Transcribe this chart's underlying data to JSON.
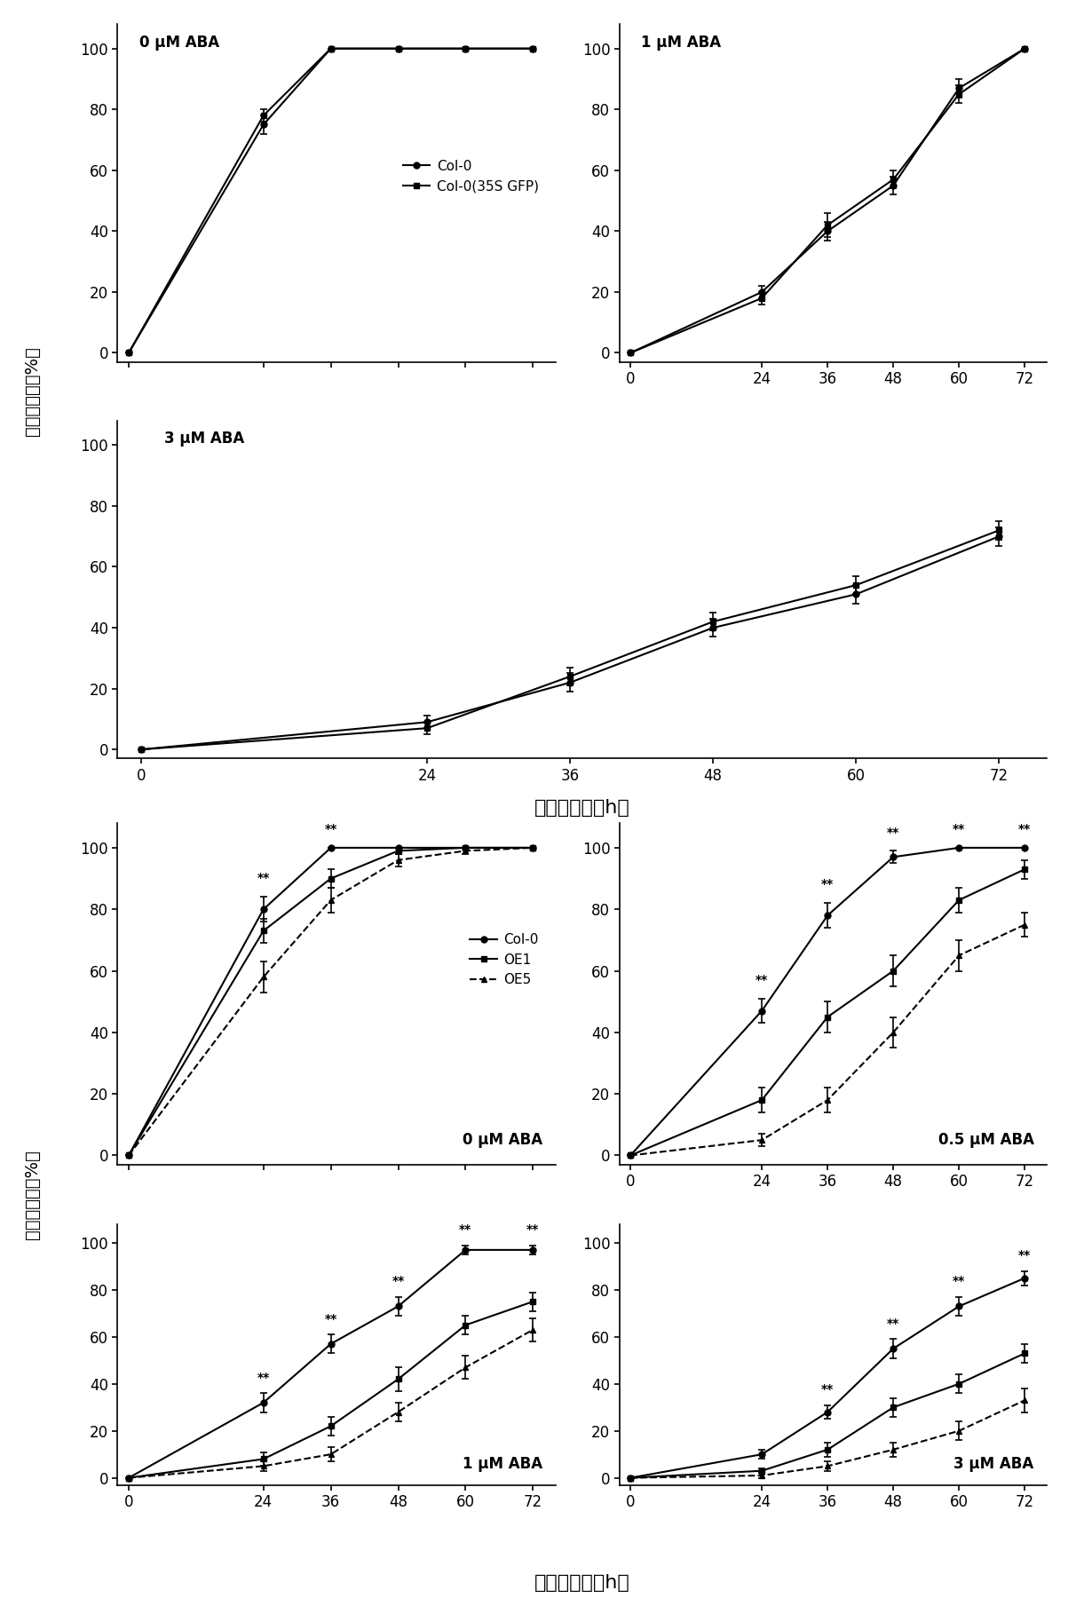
{
  "xvals": [
    0,
    24,
    36,
    48,
    60,
    72
  ],
  "top_panels": {
    "panel_0ABA": {
      "label": "0 μM ABA",
      "Col0": {
        "y": [
          0,
          75,
          100,
          100,
          100,
          100
        ],
        "yerr": [
          0,
          3,
          0,
          0,
          0,
          0
        ]
      },
      "Col0_35S": {
        "y": [
          0,
          78,
          100,
          100,
          100,
          100
        ],
        "yerr": [
          0,
          2,
          0,
          0,
          0,
          0
        ]
      }
    },
    "panel_1ABA": {
      "label": "1 μM ABA",
      "Col0": {
        "y": [
          0,
          20,
          40,
          55,
          87,
          100
        ],
        "yerr": [
          0,
          2,
          3,
          3,
          3,
          0
        ]
      },
      "Col0_35S": {
        "y": [
          0,
          18,
          42,
          57,
          85,
          100
        ],
        "yerr": [
          0,
          2,
          4,
          3,
          3,
          0
        ]
      }
    },
    "panel_3ABA": {
      "label": "3 μM ABA",
      "Col0": {
        "y": [
          0,
          9,
          22,
          40,
          51,
          70
        ],
        "yerr": [
          0,
          2,
          3,
          3,
          3,
          3
        ]
      },
      "Col0_35S": {
        "y": [
          0,
          7,
          24,
          42,
          54,
          72
        ],
        "yerr": [
          0,
          2,
          3,
          3,
          3,
          3
        ]
      }
    }
  },
  "bottom_panels": {
    "panel_0ABA": {
      "label": "0 μM ABA",
      "Col0": {
        "y": [
          0,
          80,
          100,
          100,
          100,
          100
        ],
        "yerr": [
          0,
          4,
          0,
          0,
          0,
          0
        ]
      },
      "OE1": {
        "y": [
          0,
          73,
          90,
          99,
          100,
          100
        ],
        "yerr": [
          0,
          4,
          3,
          1,
          0,
          0
        ]
      },
      "OE5": {
        "y": [
          0,
          58,
          83,
          96,
          99,
          100
        ],
        "yerr": [
          0,
          5,
          4,
          2,
          1,
          0
        ]
      },
      "sig_times": [
        24,
        36
      ],
      "sig_labels": [
        "**",
        "**"
      ]
    },
    "panel_0p5ABA": {
      "label": "0.5 μM ABA",
      "Col0": {
        "y": [
          0,
          47,
          78,
          97,
          100,
          100
        ],
        "yerr": [
          0,
          4,
          4,
          2,
          0,
          0
        ]
      },
      "OE1": {
        "y": [
          0,
          18,
          45,
          60,
          83,
          93
        ],
        "yerr": [
          0,
          4,
          5,
          5,
          4,
          3
        ]
      },
      "OE5": {
        "y": [
          0,
          5,
          18,
          40,
          65,
          75
        ],
        "yerr": [
          0,
          2,
          4,
          5,
          5,
          4
        ]
      },
      "sig_times": [
        24,
        36,
        48,
        60,
        72
      ],
      "sig_labels": [
        "**",
        "**",
        "**",
        "**",
        "**"
      ]
    },
    "panel_1ABA": {
      "label": "1 μM ABA",
      "Col0": {
        "y": [
          0,
          32,
          57,
          73,
          97,
          97
        ],
        "yerr": [
          0,
          4,
          4,
          4,
          2,
          2
        ]
      },
      "OE1": {
        "y": [
          0,
          8,
          22,
          42,
          65,
          75
        ],
        "yerr": [
          0,
          3,
          4,
          5,
          4,
          4
        ]
      },
      "OE5": {
        "y": [
          0,
          5,
          10,
          28,
          47,
          63
        ],
        "yerr": [
          0,
          2,
          3,
          4,
          5,
          5
        ]
      },
      "sig_times": [
        24,
        36,
        48,
        60,
        72
      ],
      "sig_labels": [
        "**",
        "**",
        "**",
        "**",
        "**"
      ]
    },
    "panel_3ABA": {
      "label": "3 μM ABA",
      "Col0": {
        "y": [
          0,
          10,
          28,
          55,
          73,
          85
        ],
        "yerr": [
          0,
          2,
          3,
          4,
          4,
          3
        ]
      },
      "OE1": {
        "y": [
          0,
          3,
          12,
          30,
          40,
          53
        ],
        "yerr": [
          0,
          1,
          3,
          4,
          4,
          4
        ]
      },
      "OE5": {
        "y": [
          0,
          1,
          5,
          12,
          20,
          33
        ],
        "yerr": [
          0,
          1,
          2,
          3,
          4,
          5
        ]
      },
      "sig_times": [
        36,
        48,
        60,
        72
      ],
      "sig_labels": [
        "**",
        "**",
        "**",
        "**"
      ]
    }
  },
  "ylabel": "种子萌发率（%）",
  "xlabel": "层积后时间（h）",
  "legend_top": [
    "Col-0",
    "Col-0(35S GFP)"
  ],
  "legend_bottom": [
    "Col-0",
    "OE1",
    "OE5"
  ]
}
